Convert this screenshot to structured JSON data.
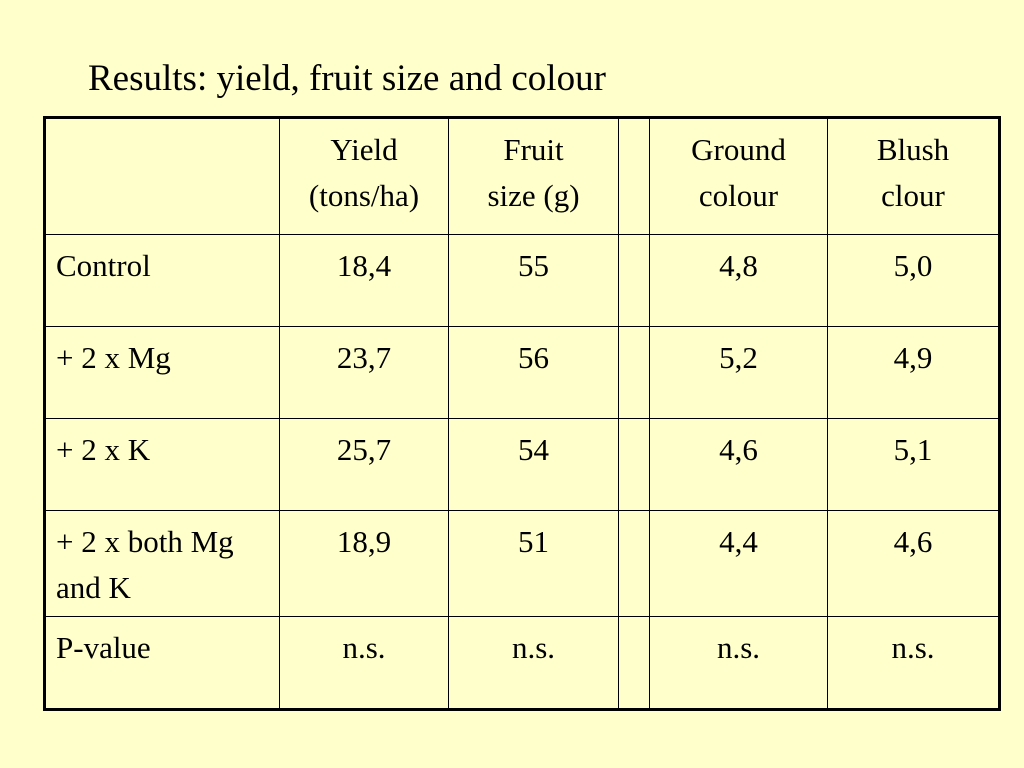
{
  "title": "Results: yield, fruit size and colour",
  "table": {
    "header": [
      [
        "Yield",
        "(tons/ha)"
      ],
      [
        "Fruit",
        "size (g)"
      ],
      [
        "Ground",
        "colour"
      ],
      [
        "Blush",
        "clour"
      ]
    ],
    "rows": [
      [
        "Control",
        "18,4",
        "55",
        "4,8",
        "5,0"
      ],
      [
        "+ 2 x Mg",
        "23,7",
        "56",
        "5,2",
        "4,9"
      ],
      [
        "+ 2 x K",
        "25,7",
        "54",
        "4,6",
        "5,1"
      ],
      [
        "+ 2 x both Mg and K",
        "18,9",
        "51",
        "4,4",
        "4,6"
      ],
      [
        "P-value",
        "n.s.",
        "n.s.",
        "n.s.",
        "n.s."
      ]
    ]
  }
}
